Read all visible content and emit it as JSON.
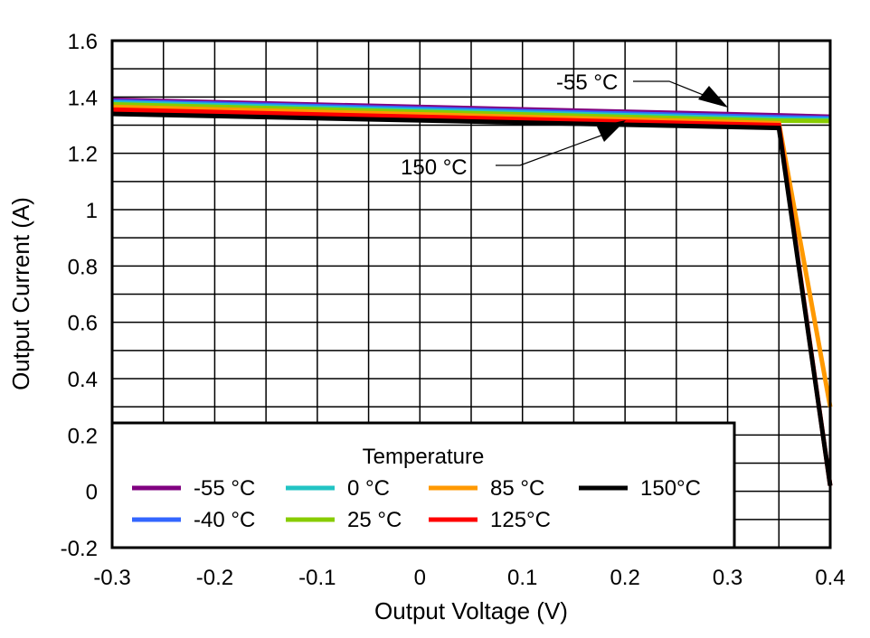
{
  "chart_data": {
    "type": "line",
    "xlabel": "Output Voltage (V)",
    "ylabel": "Output Current (A)",
    "xlim": [
      -0.3,
      0.4
    ],
    "ylim": [
      -0.2,
      1.6
    ],
    "xticks": [
      "-0.3",
      "-0.2",
      "-0.1",
      "0",
      "0.1",
      "0.2",
      "0.3",
      "0.4"
    ],
    "yticks": [
      "-0.2",
      "0",
      "0.2",
      "0.4",
      "0.6",
      "0.8",
      "1",
      "1.2",
      "1.4",
      "1.6"
    ],
    "grid": true,
    "legend": {
      "title": "Temperature",
      "placement": "bottom-left"
    },
    "series": [
      {
        "name": "-55 °C",
        "color": "#800080",
        "points": [
          [
            -0.3,
            1.39
          ],
          [
            0.35,
            1.335
          ],
          [
            0.4,
            1.33
          ]
        ]
      },
      {
        "name": "-40 °C",
        "color": "#3366ff",
        "points": [
          [
            -0.3,
            1.385
          ],
          [
            0.35,
            1.328
          ],
          [
            0.4,
            1.325
          ]
        ]
      },
      {
        "name": "0 °C",
        "color": "#22c4c4",
        "points": [
          [
            -0.3,
            1.38
          ],
          [
            0.35,
            1.322
          ],
          [
            0.4,
            1.32
          ]
        ]
      },
      {
        "name": "25 °C",
        "color": "#88cc00",
        "points": [
          [
            -0.3,
            1.374
          ],
          [
            0.35,
            1.316
          ],
          [
            0.4,
            1.315
          ]
        ]
      },
      {
        "name": "85 °C",
        "color": "#ff9900",
        "points": [
          [
            -0.3,
            1.365
          ],
          [
            0.35,
            1.307
          ],
          [
            0.4,
            0.3
          ]
        ]
      },
      {
        "name": "125°C",
        "color": "#ff0000",
        "points": [
          [
            -0.3,
            1.355
          ],
          [
            0.35,
            1.3
          ],
          [
            0.4,
            0.02
          ]
        ]
      },
      {
        "name": "150°C",
        "color": "#000000",
        "points": [
          [
            -0.3,
            1.34
          ],
          [
            0.35,
            1.29
          ],
          [
            0.4,
            0.02
          ]
        ]
      }
    ],
    "annotations": [
      {
        "text": "-55 °C",
        "points_to": [
          0.3,
          1.335
        ]
      },
      {
        "text": "150 °C",
        "points_to": [
          0.2,
          1.3
        ]
      }
    ]
  }
}
